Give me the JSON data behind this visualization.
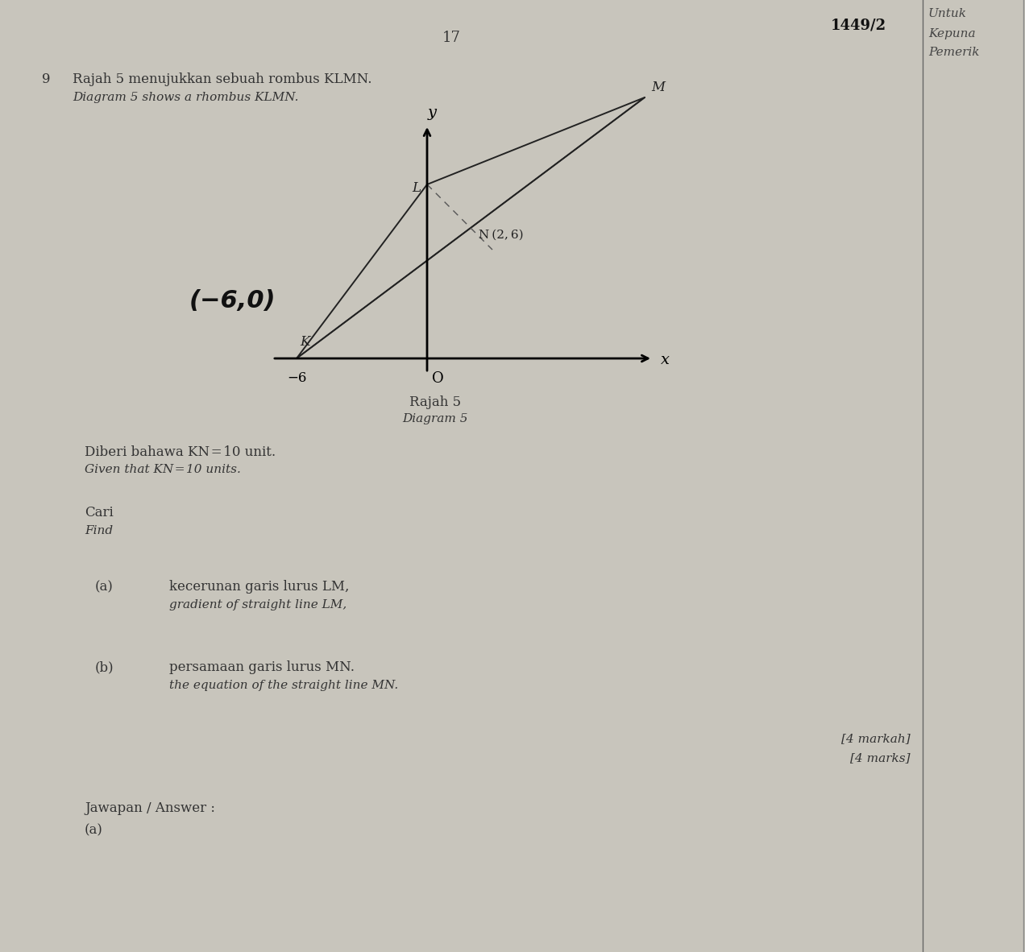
{
  "bg_color": "#c8c5bc",
  "page_color": "#d4d1c8",
  "page_number": "17",
  "header_code": "1449/2",
  "header_w1": "Untuk",
  "header_w2": "Kepuna",
  "header_w3": "Pemerik",
  "q_num": "9",
  "q_line1": "Rajah 5 menujukkan sebuah rombus KLMN.",
  "q_line2": "Diagram 5 shows a rhombus KLMN.",
  "K": [
    -6,
    0
  ],
  "L": [
    0,
    8
  ],
  "M": [
    10,
    12
  ],
  "N": [
    2,
    6
  ],
  "diagram_title1": "Rajah 5",
  "diagram_title2": "Diagram 5",
  "given1": "Diberi bahawa KN = 10 unit.",
  "given2": "Given that KN = 10 units.",
  "cari": "Cari",
  "find": "Find",
  "a_lbl": "(a)",
  "a_ms1": "kecerunan garis lurus LM,",
  "a_ms2": "gradient of straight line LM,",
  "b_lbl": "(b)",
  "b_ms1": "persamaan garis lurus MN.",
  "b_ms2": "the equation of the straight line MN.",
  "marks1": "[4 markah]",
  "marks2": "[4 marks]",
  "jawapan": "Jawapan / Answer :",
  "a_ans": "(a)"
}
